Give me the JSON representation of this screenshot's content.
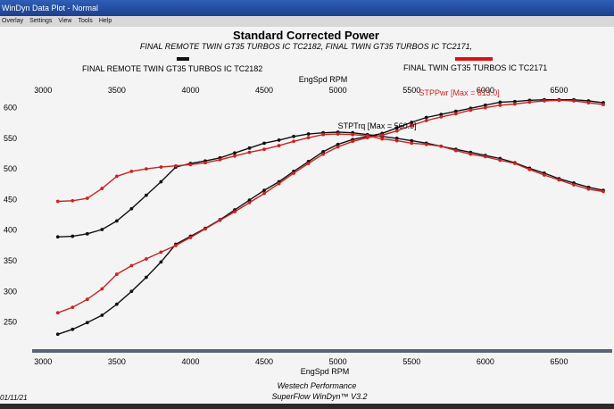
{
  "window": {
    "title": "WinDyn Data Plot - Normal"
  },
  "menu": [
    "Overlay",
    "Settings",
    "View",
    "Tools",
    "Help"
  ],
  "chart_data": {
    "type": "line",
    "title": "Standard Corrected Power",
    "subtitle": "FINAL REMOTE TWIN GT35 TURBOS IC TC2182, FINAL TWIN GT35 TURBOS IC TC2171,",
    "xlabel": "EngSpd RPM",
    "xlim": [
      2950,
      6800
    ],
    "ylim": [
      210,
      630
    ],
    "x_ticks": [
      "3000",
      "3500",
      "4000",
      "4500",
      "5000",
      "5500",
      "6000",
      "6500"
    ],
    "y_ticks": [
      "600",
      "550",
      "500",
      "450",
      "400",
      "350",
      "300",
      "250"
    ],
    "grid": false,
    "legend": [
      {
        "name": "FINAL REMOTE TWIN GT35 TURBOS IC TC2182",
        "color": "#111111"
      },
      {
        "name": "FINAL TWIN GT35 TURBOS IC TC2171",
        "color": "#cc2222"
      }
    ],
    "annotations": [
      {
        "text": "STPTrq [Max = 560.0]",
        "x": 5000,
        "y": 566
      },
      {
        "text": "STPPwr [Max = 613.0]",
        "x": 5550,
        "y": 620
      }
    ],
    "series": [
      {
        "name": "FINAL REMOTE TWIN GT35 TURBOS IC TC2182",
        "color": "#111111",
        "x": [
          3100,
          3200,
          3300,
          3400,
          3500,
          3600,
          3700,
          3800,
          3900,
          4000,
          4100,
          4200,
          4300,
          4400,
          4500,
          4600,
          4700,
          4800,
          4900,
          5000,
          5100,
          5200,
          5300,
          5400,
          5500,
          5600,
          5700,
          5800,
          5900,
          6000,
          6100,
          6200,
          6300,
          6400,
          6500,
          6600,
          6700,
          6800
        ],
        "values": [
          230,
          238,
          249,
          261,
          279,
          300,
          323,
          348,
          377,
          390,
          403,
          417,
          433,
          449,
          465,
          479,
          496,
          512,
          528,
          540,
          548,
          553,
          558,
          567,
          576,
          584,
          589,
          594,
          599,
          604,
          609,
          610,
          612,
          613,
          613,
          613,
          611,
          608
        ]
      },
      {
        "name": "FINAL REMOTE TWIN GT35 TURBOS IC TC2182",
        "color": "#111111",
        "x": [
          3100,
          3200,
          3300,
          3400,
          3500,
          3600,
          3700,
          3800,
          3900,
          4000,
          4100,
          4200,
          4300,
          4400,
          4500,
          4600,
          4700,
          4800,
          4900,
          5000,
          5100,
          5200,
          5300,
          5400,
          5500,
          5600,
          5700,
          5800,
          5900,
          6000,
          6100,
          6200,
          6300,
          6400,
          6500,
          6600,
          6700,
          6800
        ],
        "values": [
          389,
          390,
          394,
          401,
          415,
          435,
          457,
          479,
          503,
          509,
          513,
          518,
          526,
          534,
          542,
          547,
          553,
          557,
          559,
          560,
          559,
          556,
          553,
          550,
          546,
          542,
          537,
          532,
          527,
          522,
          517,
          510,
          501,
          493,
          484,
          477,
          470,
          465
        ]
      },
      {
        "name": "FINAL TWIN GT35 TURBOS IC TC2171",
        "color": "#cc2222",
        "x": [
          3100,
          3200,
          3300,
          3400,
          3500,
          3600,
          3700,
          3800,
          3900,
          4000,
          4100,
          4200,
          4300,
          4400,
          4500,
          4600,
          4700,
          4800,
          4900,
          5000,
          5100,
          5200,
          5300,
          5400,
          5500,
          5600,
          5700,
          5800,
          5900,
          6000,
          6100,
          6200,
          6300,
          6400,
          6500,
          6600,
          6700,
          6800
        ],
        "values": [
          265,
          274,
          287,
          304,
          328,
          342,
          353,
          364,
          375,
          388,
          402,
          416,
          430,
          445,
          460,
          476,
          493,
          509,
          524,
          536,
          545,
          551,
          555,
          562,
          571,
          579,
          585,
          590,
          596,
          600,
          604,
          606,
          609,
          611,
          612,
          611,
          608,
          605
        ]
      },
      {
        "name": "FINAL TWIN GT35 TURBOS IC TC2171",
        "color": "#cc2222",
        "x": [
          3100,
          3200,
          3300,
          3400,
          3500,
          3600,
          3700,
          3800,
          3900,
          4000,
          4100,
          4200,
          4300,
          4400,
          4500,
          4600,
          4700,
          4800,
          4900,
          5000,
          5100,
          5200,
          5300,
          5400,
          5500,
          5600,
          5700,
          5800,
          5900,
          6000,
          6100,
          6200,
          6300,
          6400,
          6500,
          6600,
          6700,
          6800
        ],
        "values": [
          447,
          448,
          452,
          468,
          488,
          496,
          500,
          503,
          505,
          507,
          510,
          515,
          521,
          527,
          532,
          538,
          545,
          551,
          556,
          557,
          556,
          554,
          549,
          546,
          542,
          540,
          537,
          530,
          524,
          520,
          514,
          509,
          499,
          490,
          482,
          474,
          467,
          463
        ]
      }
    ]
  },
  "footer": {
    "date": "01/11/21",
    "line1": "Westech Performance",
    "line2": "SuperFlow WinDyn™  V3.2"
  }
}
